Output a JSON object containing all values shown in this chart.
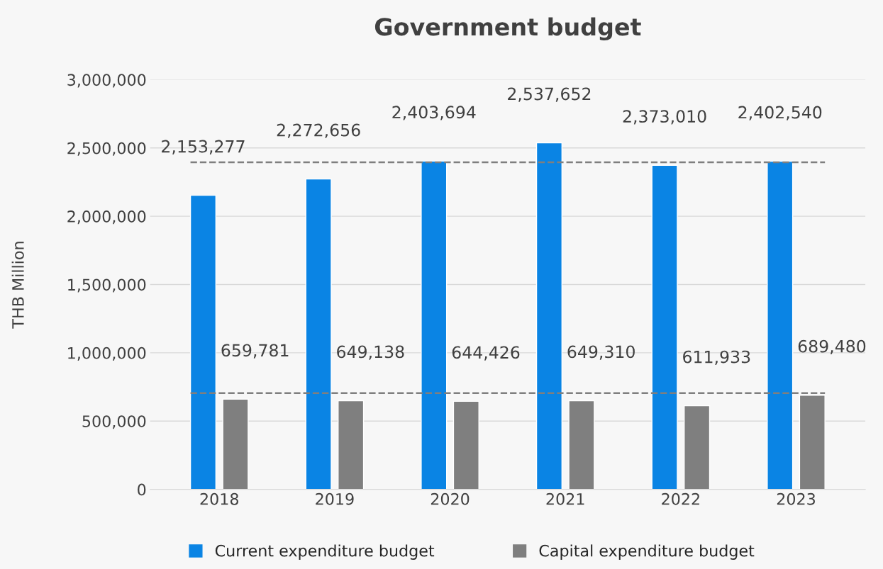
{
  "chart_data": {
    "type": "bar",
    "title": "Government budget",
    "ylabel": "THB Million",
    "categories": [
      "2018",
      "2019",
      "2020",
      "2021",
      "2022",
      "2023"
    ],
    "series": [
      {
        "name": "Current expenditure budget",
        "color": "#0a84e4",
        "values": [
          2153277,
          2272656,
          2403694,
          2537652,
          2373010,
          2402540
        ],
        "value_labels": [
          "2,153,277",
          "2,272,656",
          "2,403,694",
          "2,537,652",
          "2,373,010",
          "2,402,540"
        ]
      },
      {
        "name": "Capital expenditure budget",
        "color": "#7f7f7f",
        "values": [
          659781,
          649138,
          644426,
          649310,
          611933,
          689480
        ],
        "value_labels": [
          "659,781",
          "649,138",
          "644,426",
          "649,310",
          "611,933",
          "689,480"
        ]
      }
    ],
    "ylim": [
      0,
      3000000
    ],
    "yticks": [
      {
        "value": 0,
        "label": "0"
      },
      {
        "value": 500000,
        "label": "500,000"
      },
      {
        "value": 1000000,
        "label": "1,000,000"
      },
      {
        "value": 1500000,
        "label": "1,500,000"
      },
      {
        "value": 2000000,
        "label": "2,000,000"
      },
      {
        "value": 2500000,
        "label": "2,500,000"
      },
      {
        "value": 3000000,
        "label": "3,000,000"
      }
    ],
    "ref_lines": [
      {
        "axis": "y",
        "value": 2395000,
        "color": "#7f7f7f",
        "line_style": "dashed"
      },
      {
        "axis": "y",
        "value": 705000,
        "color": "#7f7f7f",
        "line_style": "dashed"
      }
    ],
    "grid": "y",
    "legend": "bottom"
  }
}
